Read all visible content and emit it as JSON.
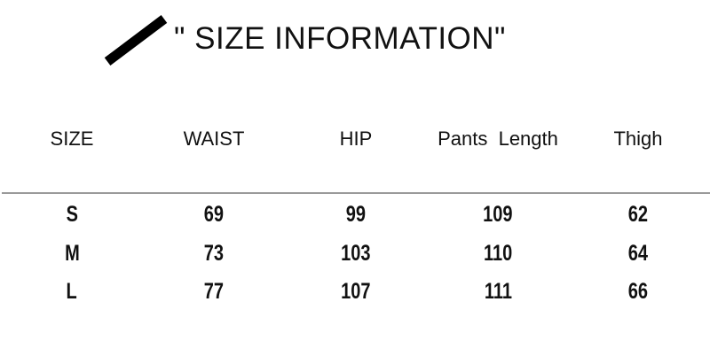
{
  "title": "\" SIZE INFORMATION\"",
  "headers": [
    "SIZE",
    "WAIST",
    "HIP",
    "Pants  Length",
    "Thigh"
  ],
  "rows": [
    [
      "S",
      "69",
      "99",
      "109",
      "62"
    ],
    [
      "M",
      "73",
      "103",
      "110",
      "64"
    ],
    [
      "L",
      "77",
      "107",
      "111",
      "66"
    ]
  ]
}
